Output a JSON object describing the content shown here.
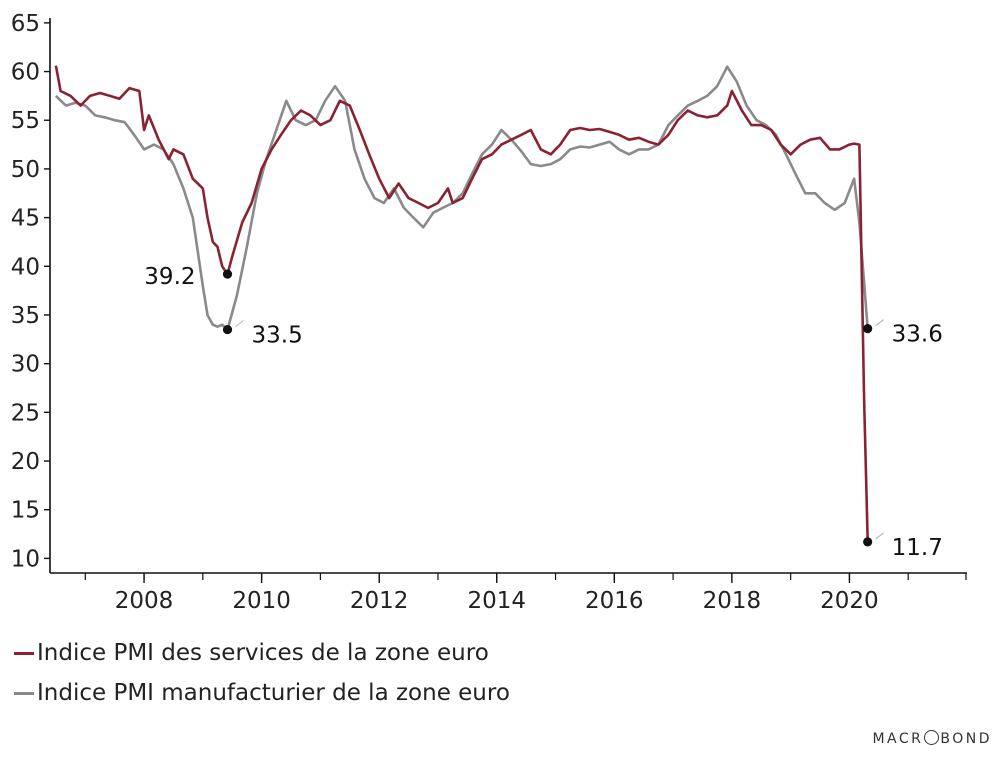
{
  "chart_data": {
    "type": "line",
    "y_ticks": [
      10,
      15,
      20,
      25,
      30,
      35,
      40,
      45,
      50,
      55,
      60,
      65
    ],
    "x_ticks": [
      "2008",
      "2010",
      "2012",
      "2014",
      "2016",
      "2018",
      "2020"
    ],
    "ylim": [
      8.5,
      65.5
    ],
    "xlim": [
      2006.4,
      2022.0
    ],
    "series": [
      {
        "name": "Indice PMI des services de la zone euro",
        "color": "#8b2233",
        "points": [
          [
            2006.5,
            60.6
          ],
          [
            2006.58,
            58.0
          ],
          [
            2006.75,
            57.5
          ],
          [
            2006.92,
            56.5
          ],
          [
            2007.08,
            57.5
          ],
          [
            2007.25,
            57.8
          ],
          [
            2007.42,
            57.5
          ],
          [
            2007.58,
            57.2
          ],
          [
            2007.75,
            58.3
          ],
          [
            2007.92,
            58.0
          ],
          [
            2008.0,
            54.0
          ],
          [
            2008.08,
            55.5
          ],
          [
            2008.25,
            53.0
          ],
          [
            2008.42,
            51.0
          ],
          [
            2008.5,
            52.0
          ],
          [
            2008.67,
            51.5
          ],
          [
            2008.83,
            49.0
          ],
          [
            2009.0,
            48.0
          ],
          [
            2009.08,
            45.0
          ],
          [
            2009.17,
            42.5
          ],
          [
            2009.25,
            42.0
          ],
          [
            2009.33,
            40.0
          ],
          [
            2009.42,
            39.2
          ],
          [
            2009.5,
            41.0
          ],
          [
            2009.67,
            44.5
          ],
          [
            2009.83,
            46.5
          ],
          [
            2010.0,
            50.0
          ],
          [
            2010.17,
            52.0
          ],
          [
            2010.33,
            53.5
          ],
          [
            2010.5,
            55.0
          ],
          [
            2010.67,
            56.0
          ],
          [
            2010.83,
            55.5
          ],
          [
            2011.0,
            54.5
          ],
          [
            2011.17,
            55.0
          ],
          [
            2011.33,
            57.0
          ],
          [
            2011.5,
            56.5
          ],
          [
            2011.67,
            54.0
          ],
          [
            2011.83,
            51.5
          ],
          [
            2012.0,
            49.0
          ],
          [
            2012.17,
            47.0
          ],
          [
            2012.33,
            48.5
          ],
          [
            2012.5,
            47.0
          ],
          [
            2012.67,
            46.5
          ],
          [
            2012.83,
            46.0
          ],
          [
            2013.0,
            46.5
          ],
          [
            2013.17,
            48.0
          ],
          [
            2013.25,
            46.5
          ],
          [
            2013.42,
            47.0
          ],
          [
            2013.58,
            49.0
          ],
          [
            2013.75,
            51.0
          ],
          [
            2013.92,
            51.5
          ],
          [
            2014.08,
            52.5
          ],
          [
            2014.25,
            53.0
          ],
          [
            2014.42,
            53.5
          ],
          [
            2014.58,
            54.0
          ],
          [
            2014.75,
            52.0
          ],
          [
            2014.92,
            51.5
          ],
          [
            2015.08,
            52.5
          ],
          [
            2015.25,
            54.0
          ],
          [
            2015.42,
            54.2
          ],
          [
            2015.58,
            54.0
          ],
          [
            2015.75,
            54.1
          ],
          [
            2015.92,
            53.8
          ],
          [
            2016.08,
            53.5
          ],
          [
            2016.25,
            53.0
          ],
          [
            2016.42,
            53.2
          ],
          [
            2016.58,
            52.8
          ],
          [
            2016.75,
            52.5
          ],
          [
            2016.92,
            53.5
          ],
          [
            2017.08,
            55.0
          ],
          [
            2017.25,
            56.0
          ],
          [
            2017.42,
            55.5
          ],
          [
            2017.58,
            55.3
          ],
          [
            2017.75,
            55.5
          ],
          [
            2017.92,
            56.5
          ],
          [
            2018.0,
            58.0
          ],
          [
            2018.17,
            56.0
          ],
          [
            2018.33,
            54.5
          ],
          [
            2018.5,
            54.5
          ],
          [
            2018.67,
            54.0
          ],
          [
            2018.83,
            52.5
          ],
          [
            2019.0,
            51.5
          ],
          [
            2019.17,
            52.5
          ],
          [
            2019.33,
            53.0
          ],
          [
            2019.5,
            53.2
          ],
          [
            2019.67,
            52.0
          ],
          [
            2019.83,
            52.0
          ],
          [
            2020.0,
            52.5
          ],
          [
            2020.08,
            52.6
          ],
          [
            2020.17,
            52.5
          ],
          [
            2020.25,
            26.4
          ],
          [
            2020.31,
            11.7
          ]
        ]
      },
      {
        "name": "Indice PMI manufacturier de la zone euro",
        "color": "#8a8a8a",
        "points": [
          [
            2006.5,
            57.5
          ],
          [
            2006.67,
            56.5
          ],
          [
            2006.83,
            56.8
          ],
          [
            2007.0,
            56.5
          ],
          [
            2007.17,
            55.5
          ],
          [
            2007.33,
            55.3
          ],
          [
            2007.5,
            55.0
          ],
          [
            2007.67,
            54.8
          ],
          [
            2007.83,
            53.5
          ],
          [
            2008.0,
            52.0
          ],
          [
            2008.17,
            52.5
          ],
          [
            2008.33,
            52.0
          ],
          [
            2008.5,
            50.5
          ],
          [
            2008.67,
            48.0
          ],
          [
            2008.83,
            45.0
          ],
          [
            2009.0,
            38.0
          ],
          [
            2009.08,
            35.0
          ],
          [
            2009.17,
            34.0
          ],
          [
            2009.25,
            33.8
          ],
          [
            2009.33,
            34.0
          ],
          [
            2009.42,
            33.5
          ],
          [
            2009.58,
            37.0
          ],
          [
            2009.75,
            42.0
          ],
          [
            2009.92,
            47.5
          ],
          [
            2010.08,
            51.0
          ],
          [
            2010.25,
            54.0
          ],
          [
            2010.42,
            57.0
          ],
          [
            2010.58,
            55.0
          ],
          [
            2010.75,
            54.5
          ],
          [
            2010.92,
            55.0
          ],
          [
            2011.08,
            57.0
          ],
          [
            2011.25,
            58.5
          ],
          [
            2011.42,
            57.0
          ],
          [
            2011.58,
            52.0
          ],
          [
            2011.75,
            49.0
          ],
          [
            2011.92,
            47.0
          ],
          [
            2012.08,
            46.5
          ],
          [
            2012.25,
            48.0
          ],
          [
            2012.42,
            46.0
          ],
          [
            2012.58,
            45.0
          ],
          [
            2012.75,
            44.0
          ],
          [
            2012.92,
            45.5
          ],
          [
            2013.08,
            46.0
          ],
          [
            2013.25,
            46.5
          ],
          [
            2013.42,
            47.5
          ],
          [
            2013.58,
            49.5
          ],
          [
            2013.75,
            51.5
          ],
          [
            2013.92,
            52.5
          ],
          [
            2014.08,
            54.0
          ],
          [
            2014.25,
            53.0
          ],
          [
            2014.42,
            51.8
          ],
          [
            2014.58,
            50.5
          ],
          [
            2014.75,
            50.3
          ],
          [
            2014.92,
            50.5
          ],
          [
            2015.08,
            51.0
          ],
          [
            2015.25,
            52.0
          ],
          [
            2015.42,
            52.3
          ],
          [
            2015.58,
            52.2
          ],
          [
            2015.75,
            52.5
          ],
          [
            2015.92,
            52.8
          ],
          [
            2016.08,
            52.0
          ],
          [
            2016.25,
            51.5
          ],
          [
            2016.42,
            52.0
          ],
          [
            2016.58,
            52.0
          ],
          [
            2016.75,
            52.5
          ],
          [
            2016.92,
            54.5
          ],
          [
            2017.08,
            55.5
          ],
          [
            2017.25,
            56.5
          ],
          [
            2017.42,
            57.0
          ],
          [
            2017.58,
            57.5
          ],
          [
            2017.75,
            58.5
          ],
          [
            2017.92,
            60.5
          ],
          [
            2018.08,
            59.0
          ],
          [
            2018.25,
            56.5
          ],
          [
            2018.42,
            55.0
          ],
          [
            2018.58,
            54.5
          ],
          [
            2018.75,
            53.5
          ],
          [
            2018.92,
            51.5
          ],
          [
            2019.08,
            49.5
          ],
          [
            2019.25,
            47.5
          ],
          [
            2019.42,
            47.5
          ],
          [
            2019.58,
            46.5
          ],
          [
            2019.75,
            45.8
          ],
          [
            2019.92,
            46.5
          ],
          [
            2020.08,
            49.0
          ],
          [
            2020.17,
            44.5
          ],
          [
            2020.31,
            33.6
          ]
        ]
      }
    ],
    "annotations": [
      {
        "value": "39.2",
        "x": 2009.42,
        "y": 39.2,
        "side": "left",
        "marker_color": "#111"
      },
      {
        "value": "33.5",
        "x": 2009.42,
        "y": 33.5,
        "side": "right",
        "marker_color": "#111"
      },
      {
        "value": "33.6",
        "x": 2020.31,
        "y": 33.6,
        "side": "right",
        "marker_color": "#111"
      },
      {
        "value": "11.7",
        "x": 2020.31,
        "y": 11.7,
        "side": "right",
        "marker_color": "#111"
      }
    ],
    "grid": false
  },
  "legend": {
    "items": [
      {
        "label": "Indice PMI des services de la zone euro",
        "color": "#8b2233"
      },
      {
        "label": "Indice PMI manufacturier de la zone euro",
        "color": "#8a8a8a"
      }
    ]
  },
  "brand": {
    "left": "MACR",
    "right": "BOND"
  }
}
